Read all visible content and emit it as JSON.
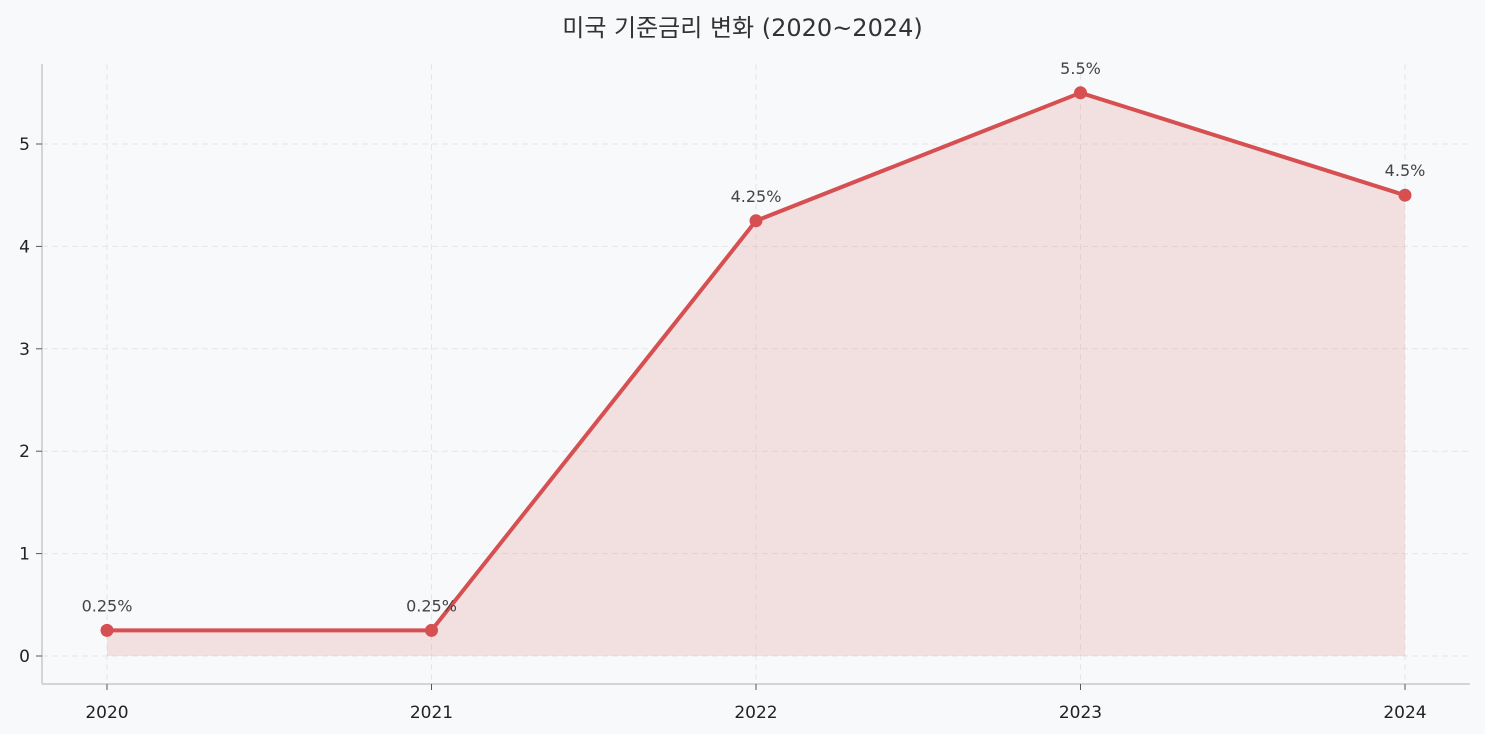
{
  "chart_data": {
    "type": "area",
    "title": "미국 기준금리 변화 (2020~2024)",
    "xlabel": "",
    "ylabel": "",
    "categories": [
      "2020",
      "2021",
      "2022",
      "2023",
      "2024"
    ],
    "series": [
      {
        "values": [
          0.25,
          0.25,
          4.25,
          5.5,
          4.5
        ],
        "labels": [
          "0.25%",
          "0.25%",
          "4.25%",
          "5.5%",
          "4.5%"
        ]
      }
    ],
    "yticks": [
      0,
      1,
      2,
      3,
      4,
      5
    ],
    "ylim": [
      -0.27,
      5.8
    ],
    "grid": true,
    "legend": "none",
    "colors": {
      "line": "#d64f51",
      "fill": "#d64f51",
      "background": "#f7f9fb",
      "grid": "#e3e6ea",
      "axis": "#c9c9c9"
    }
  }
}
